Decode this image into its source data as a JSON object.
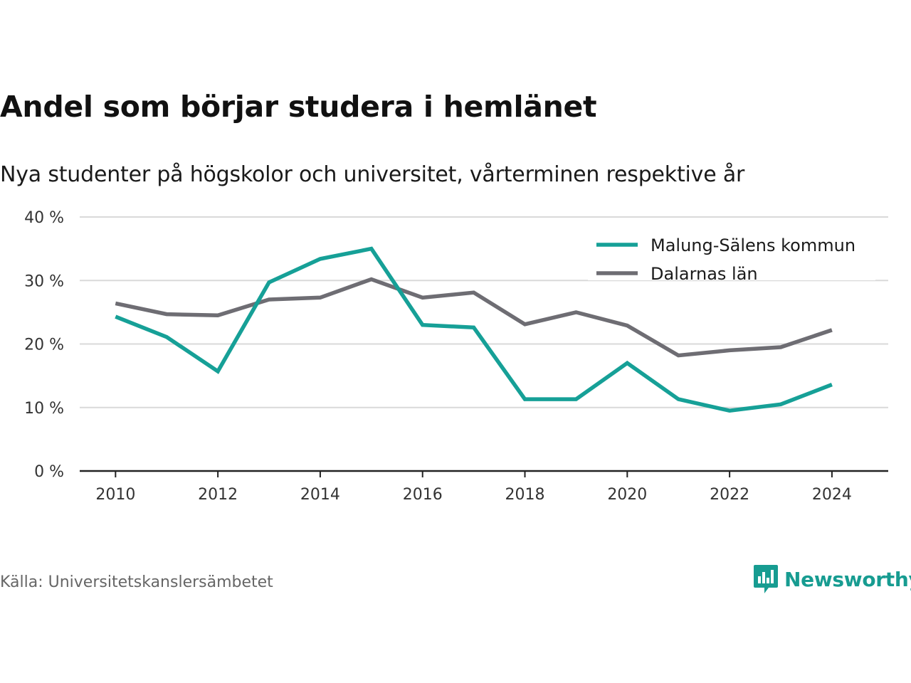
{
  "header": {
    "title": "Andel som börjar studera i hemlänet",
    "subtitle": "Nya studenter på högskolor och universitet, vårterminen respektive år"
  },
  "footer": {
    "source": "Källa: Universitetskanslersämbetet",
    "brand": "Newsworthy",
    "brand_icon": "bar-chart-speech-bubble-icon"
  },
  "colors": {
    "series_1": "#16a097",
    "series_2": "#6e6d73",
    "grid": "#d9d9d9",
    "axis": "#222222",
    "brand": "#179c91"
  },
  "chart_data": {
    "type": "line",
    "title": "Andel som börjar studera i hemlänet",
    "subtitle": "Nya studenter på högskolor och universitet, vårterminen respektive år",
    "xlabel": "",
    "ylabel": "",
    "x": [
      2010,
      2011,
      2012,
      2013,
      2014,
      2015,
      2016,
      2017,
      2018,
      2019,
      2020,
      2021,
      2022,
      2023,
      2024
    ],
    "xlim": [
      2009.3,
      2025.1
    ],
    "x_ticks": [
      2010,
      2012,
      2014,
      2016,
      2018,
      2020,
      2022,
      2024
    ],
    "x_tick_labels": [
      "2010",
      "2012",
      "2014",
      "2016",
      "2018",
      "2020",
      "2022",
      "2024"
    ],
    "ylim": [
      0,
      40
    ],
    "y_ticks": [
      0,
      10,
      20,
      30,
      40
    ],
    "y_tick_labels": [
      "0 %",
      "10 %",
      "20 %",
      "30 %",
      "40 %"
    ],
    "grid": true,
    "legend_position": "top-right",
    "series": [
      {
        "name": "Malung-Sälens kommun",
        "color": "#16a097",
        "values": [
          24.3,
          21.1,
          15.7,
          29.7,
          33.4,
          35.0,
          23.0,
          22.6,
          11.3,
          11.3,
          17.0,
          11.3,
          9.5,
          10.5,
          13.6
        ]
      },
      {
        "name": "Dalarnas län",
        "color": "#6e6d73",
        "values": [
          26.4,
          24.7,
          24.5,
          27.0,
          27.3,
          30.2,
          27.3,
          28.1,
          23.1,
          25.0,
          22.9,
          18.2,
          19.0,
          19.5,
          22.2
        ]
      }
    ]
  }
}
